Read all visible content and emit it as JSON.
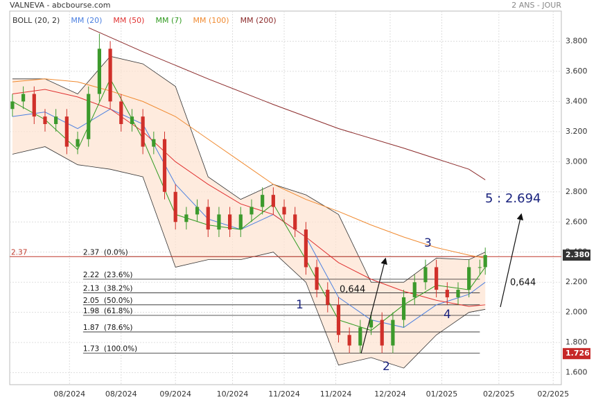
{
  "chart_data": {
    "type": "candlestick",
    "title": "VALNEVA - abcbourse.com",
    "subtitle": "2 ANS - JOUR",
    "xlim": [
      0,
      203
    ],
    "ylim": [
      1.52,
      4.0
    ],
    "xticks": [
      {
        "value": 22,
        "label": "08/2024"
      },
      {
        "value": 41,
        "label": "08/2024"
      },
      {
        "value": 61,
        "label": "09/2024"
      },
      {
        "value": 82,
        "label": "10/2024"
      },
      {
        "value": 101,
        "label": "11/2024"
      },
      {
        "value": 120,
        "label": "11/2024"
      },
      {
        "value": 140,
        "label": "12/2024"
      },
      {
        "value": 159,
        "label": "01/2025"
      },
      {
        "value": 180,
        "label": "02/2025"
      },
      {
        "value": 200,
        "label": "02/2025"
      }
    ],
    "yticks": [
      {
        "value": 1.6,
        "label": "1.600"
      },
      {
        "value": 1.8,
        "label": "1.800"
      },
      {
        "value": 2.0,
        "label": "2.000"
      },
      {
        "value": 2.2,
        "label": "2.200"
      },
      {
        "value": 2.4,
        "label": "2.400"
      },
      {
        "value": 2.6,
        "label": "2.600"
      },
      {
        "value": 2.8,
        "label": "2.800"
      },
      {
        "value": 3.0,
        "label": "3.000"
      },
      {
        "value": 3.2,
        "label": "3.200"
      },
      {
        "value": 3.4,
        "label": "3.400"
      },
      {
        "value": 3.6,
        "label": "3.600"
      },
      {
        "value": 3.8,
        "label": "3.800"
      }
    ],
    "grid": true,
    "candles": {
      "up_color": "#3c9a2c",
      "down_color": "#d0302a",
      "x": [
        1,
        5,
        9,
        13,
        17,
        21,
        25,
        29,
        33,
        37,
        41,
        45,
        49,
        53,
        57,
        61,
        65,
        69,
        73,
        77,
        81,
        85,
        89,
        93,
        97,
        101,
        105,
        109,
        113,
        117,
        121,
        125,
        129,
        133,
        137,
        141,
        145,
        149,
        153,
        157,
        161,
        165,
        169,
        173,
        175
      ],
      "open": [
        3.35,
        3.4,
        3.45,
        3.3,
        3.25,
        3.3,
        3.1,
        3.15,
        3.45,
        3.75,
        3.4,
        3.25,
        3.3,
        3.1,
        3.15,
        2.8,
        2.6,
        2.65,
        2.7,
        2.55,
        2.65,
        2.55,
        2.65,
        2.7,
        2.78,
        2.7,
        2.65,
        2.55,
        2.3,
        2.15,
        2.05,
        1.85,
        1.78,
        1.9,
        1.95,
        1.78,
        1.95,
        2.1,
        2.2,
        2.3,
        2.15,
        2.1,
        2.15,
        2.3,
        2.3
      ],
      "high": [
        3.45,
        3.5,
        3.5,
        3.35,
        3.35,
        3.35,
        3.2,
        3.5,
        3.85,
        3.8,
        3.45,
        3.35,
        3.35,
        3.2,
        3.2,
        2.85,
        2.7,
        2.75,
        2.75,
        2.7,
        2.7,
        2.7,
        2.75,
        2.83,
        2.83,
        2.75,
        2.7,
        2.6,
        2.35,
        2.2,
        2.1,
        1.9,
        1.95,
        2.0,
        2.0,
        2.0,
        2.15,
        2.25,
        2.35,
        2.35,
        2.2,
        2.2,
        2.35,
        2.35,
        2.43
      ],
      "low": [
        3.3,
        3.35,
        3.25,
        3.2,
        3.2,
        3.05,
        3.05,
        3.1,
        3.4,
        3.35,
        3.2,
        3.2,
        3.05,
        3.05,
        2.75,
        2.55,
        2.55,
        2.6,
        2.5,
        2.5,
        2.5,
        2.5,
        2.6,
        2.65,
        2.65,
        2.6,
        2.5,
        2.25,
        2.1,
        2.0,
        1.8,
        1.73,
        1.73,
        1.85,
        1.73,
        1.73,
        1.9,
        2.05,
        2.15,
        2.1,
        2.05,
        2.05,
        2.1,
        2.25,
        2.25
      ],
      "close": [
        3.4,
        3.45,
        3.3,
        3.25,
        3.3,
        3.1,
        3.15,
        3.45,
        3.75,
        3.4,
        3.25,
        3.3,
        3.1,
        3.15,
        2.8,
        2.6,
        2.65,
        2.7,
        2.55,
        2.65,
        2.55,
        2.65,
        2.7,
        2.78,
        2.7,
        2.65,
        2.55,
        2.3,
        2.15,
        2.05,
        1.85,
        1.78,
        1.9,
        1.95,
        1.78,
        1.95,
        2.1,
        2.2,
        2.3,
        2.15,
        2.1,
        2.15,
        2.3,
        2.3,
        2.38
      ]
    },
    "band": {
      "name": "BOLL (20, 2)",
      "color": "#333333",
      "fill": "#fde3d0",
      "x": [
        1,
        13,
        25,
        37,
        49,
        61,
        73,
        85,
        97,
        109,
        121,
        133,
        145,
        157,
        169,
        175
      ],
      "upper": [
        3.55,
        3.55,
        3.45,
        3.7,
        3.65,
        3.5,
        2.9,
        2.75,
        2.85,
        2.78,
        2.65,
        2.2,
        2.2,
        2.36,
        2.35,
        2.4
      ],
      "lower": [
        3.05,
        3.1,
        2.98,
        2.95,
        2.9,
        2.3,
        2.35,
        2.35,
        2.4,
        2.2,
        1.65,
        1.7,
        1.63,
        1.85,
        2.0,
        2.02
      ]
    },
    "series": [
      {
        "name": "MM (20)",
        "color": "#4a7fe0",
        "x": [
          1,
          13,
          25,
          37,
          49,
          61,
          73,
          85,
          97,
          109,
          121,
          133,
          145,
          157,
          169,
          175
        ],
        "values": [
          3.3,
          3.33,
          3.22,
          3.35,
          3.25,
          2.85,
          2.62,
          2.55,
          2.65,
          2.5,
          2.1,
          1.95,
          1.9,
          2.05,
          2.12,
          2.2
        ]
      },
      {
        "name": "MM (50)",
        "color": "#e03030",
        "x": [
          1,
          13,
          25,
          37,
          49,
          61,
          73,
          85,
          97,
          109,
          121,
          133,
          145,
          157,
          169,
          175
        ],
        "values": [
          3.45,
          3.48,
          3.43,
          3.35,
          3.2,
          3.0,
          2.85,
          2.72,
          2.65,
          2.5,
          2.33,
          2.22,
          2.14,
          2.08,
          2.04,
          2.05
        ]
      },
      {
        "name": "MM (7)",
        "color": "#2f9a1f",
        "x": [
          1,
          13,
          25,
          37,
          49,
          61,
          73,
          85,
          97,
          109,
          121,
          133,
          145,
          157,
          169,
          175
        ],
        "values": [
          3.4,
          3.28,
          3.08,
          3.55,
          3.15,
          2.65,
          2.58,
          2.55,
          2.72,
          2.35,
          1.95,
          1.88,
          2.05,
          2.18,
          2.15,
          2.3
        ]
      },
      {
        "name": "MM (100)",
        "color": "#f08a30",
        "x": [
          1,
          13,
          25,
          37,
          49,
          61,
          73,
          85,
          97,
          109,
          121,
          133,
          145,
          157,
          169,
          175
        ],
        "values": [
          3.53,
          3.55,
          3.53,
          3.47,
          3.4,
          3.3,
          3.15,
          3.0,
          2.85,
          2.75,
          2.67,
          2.58,
          2.5,
          2.43,
          2.38,
          2.36
        ]
      },
      {
        "name": "MM (200)",
        "color": "#8b2a2a",
        "x": [
          29,
          49,
          73,
          97,
          121,
          145,
          169,
          175
        ],
        "values": [
          3.89,
          3.73,
          3.55,
          3.38,
          3.22,
          3.09,
          2.95,
          2.88
        ]
      }
    ],
    "fib": [
      {
        "value": 2.37,
        "label": "2.37  (0.0%)"
      },
      {
        "value": 2.22,
        "label": "2.22  (23.6%)"
      },
      {
        "value": 2.13,
        "label": "2.13  (38.2%)"
      },
      {
        "value": 2.05,
        "label": "2.05  (50.0%)"
      },
      {
        "value": 1.98,
        "label": "1.98  (61.8%)"
      },
      {
        "value": 1.87,
        "label": "1.87  (78.6%)"
      },
      {
        "value": 1.73,
        "label": "1.73  (100.0%)"
      }
    ],
    "fib_x": [
      27,
      173
    ],
    "hline": {
      "value": 2.37,
      "label": "2.37",
      "color": "#c0392b"
    },
    "last_price": {
      "value": 2.38,
      "label": "2.380"
    },
    "low_price": {
      "value": 1.726,
      "label": "1.726"
    },
    "annotations": [
      "1",
      "2",
      "3",
      "4",
      "5 : 2.694",
      "0,644",
      "0,644"
    ]
  }
}
